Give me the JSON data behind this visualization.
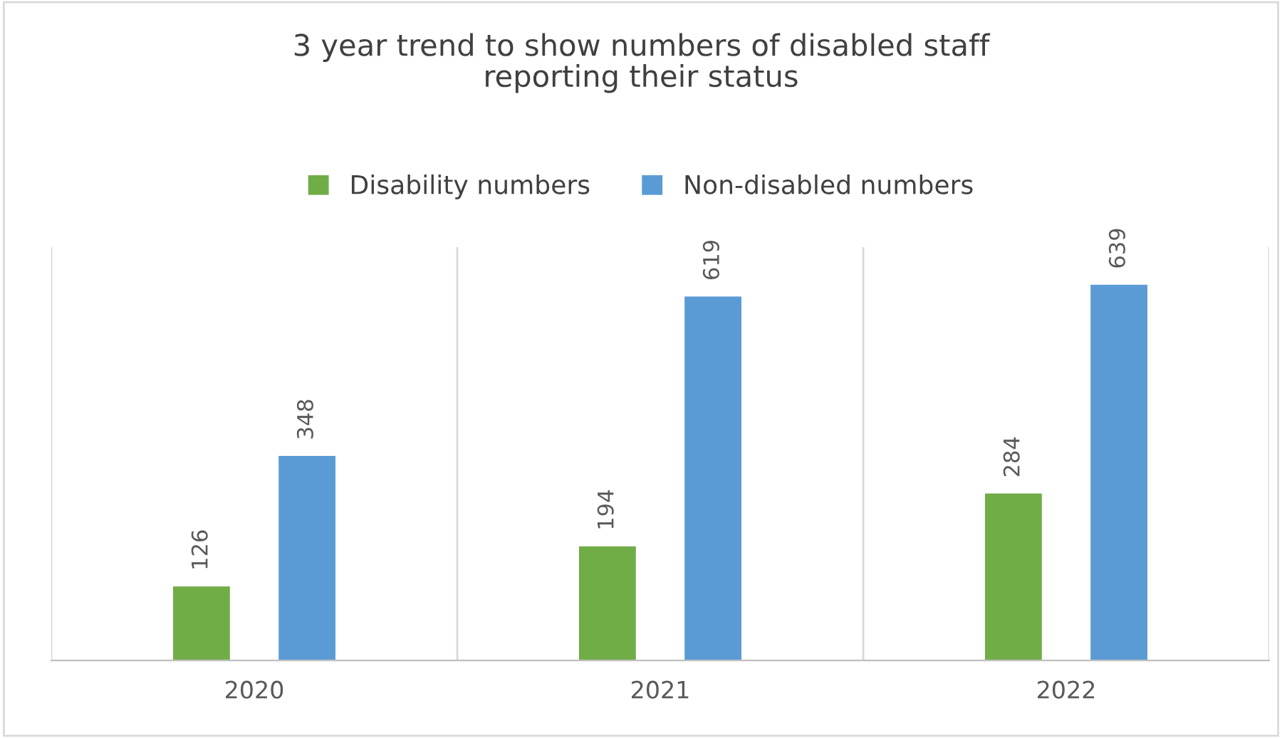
{
  "chart_data": {
    "type": "bar",
    "title": "3 year trend to show numbers of disabled staff\nreporting their status",
    "categories": [
      "2020",
      "2021",
      "2022"
    ],
    "series": [
      {
        "name": "Disability numbers",
        "color": "#70ad47",
        "values": [
          126,
          194,
          284
        ]
      },
      {
        "name": "Non-disabled numbers",
        "color": "#5b9bd5",
        "values": [
          348,
          619,
          639
        ]
      }
    ],
    "data_labels": true,
    "grid": "x",
    "legend": "top",
    "tick_labels": "x"
  }
}
